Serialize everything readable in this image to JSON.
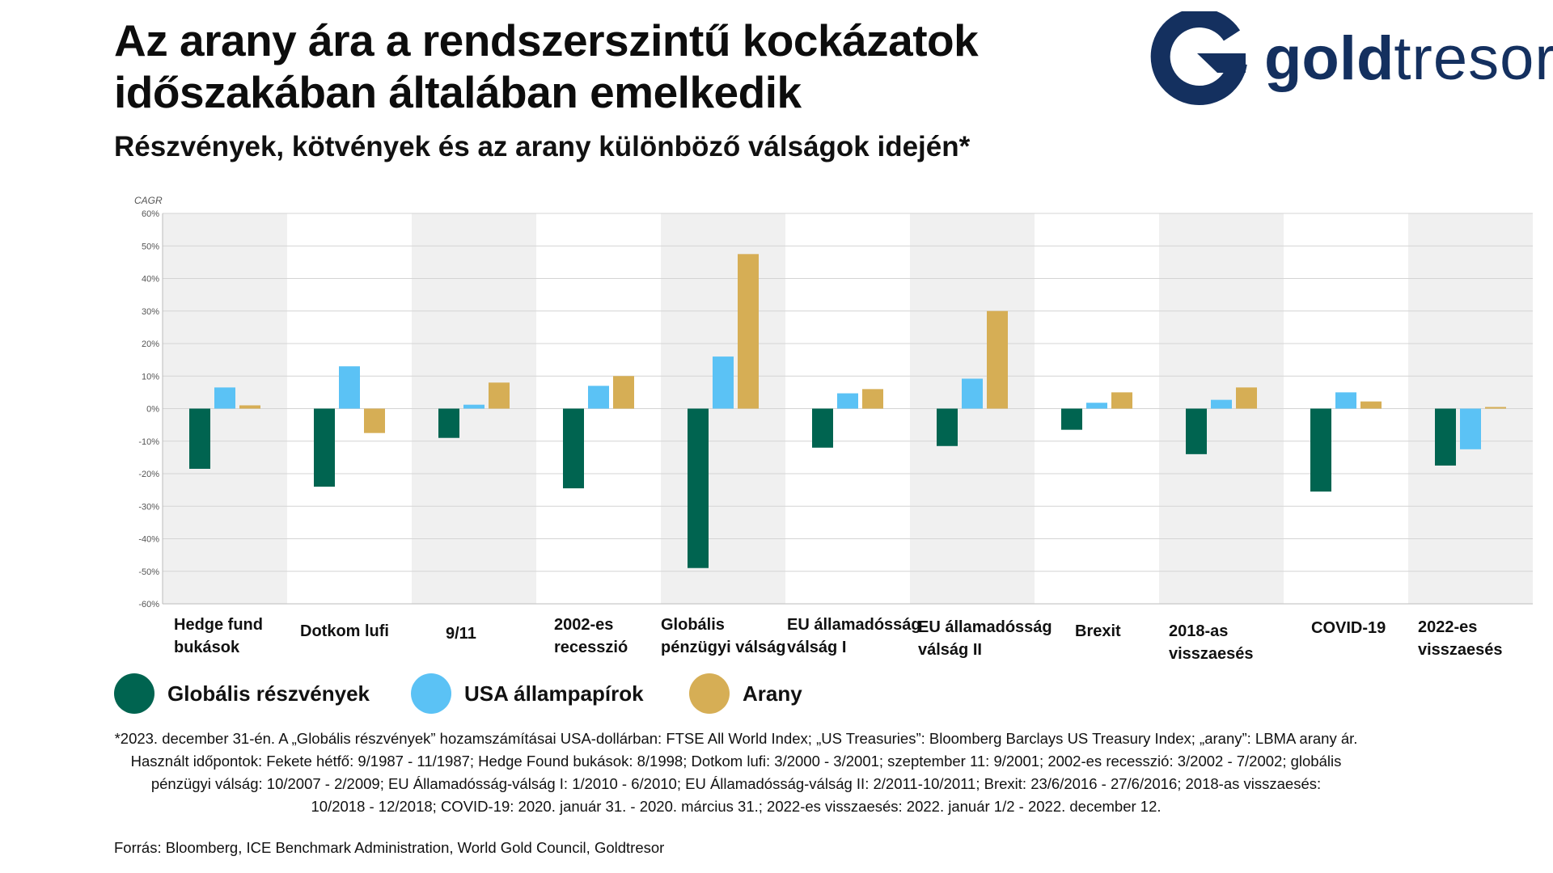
{
  "header": {
    "title_line1": "Az arany ára a rendszerszintű kockázatok",
    "title_line2": "időszakában általában emelkedik",
    "subtitle": "Részvények, kötvények és az arany különböző válságok idején*"
  },
  "logo": {
    "text_bold": "gold",
    "text_regular": "tresor",
    "color": "#14305f"
  },
  "chart_data": {
    "type": "bar",
    "ylabel": "CAGR",
    "ylim": [
      -60,
      60
    ],
    "yticks": [
      60,
      50,
      40,
      30,
      20,
      10,
      0,
      -10,
      -20,
      -30,
      -40,
      -50,
      -60
    ],
    "ytick_labels": [
      "60%",
      "50%",
      "40%",
      "30%",
      "20%",
      "10%",
      "0%",
      "-10%",
      "-20%",
      "-30%",
      "-40%",
      "-50%",
      "-60%"
    ],
    "categories": [
      [
        "Hedge fund",
        "bukások"
      ],
      [
        "Dotkom lufi"
      ],
      [
        "9/11"
      ],
      [
        "2002-es",
        "recesszió"
      ],
      [
        "Globális",
        "pénzügyi válság"
      ],
      [
        "EU államadósság",
        "válság I"
      ],
      [
        "EU államadósság",
        "válság II"
      ],
      [
        "Brexit"
      ],
      [
        "2018-as",
        "visszaesés"
      ],
      [
        "COVID-19"
      ],
      [
        "2022-es",
        "visszaesés"
      ]
    ],
    "series": [
      {
        "name": "Globális részvények",
        "color": "#006450",
        "values": [
          -18.5,
          -24,
          -9,
          -24.5,
          -49,
          -12,
          -11.5,
          -6.5,
          -14,
          -25.5,
          -17.5
        ]
      },
      {
        "name": "USA állampapírok",
        "color": "#5bc2f5",
        "values": [
          6.5,
          13,
          1.2,
          7,
          16,
          4.7,
          9.2,
          1.8,
          2.7,
          5,
          -12.5
        ]
      },
      {
        "name": "Arany",
        "color": "#d6ae55",
        "values": [
          1,
          -7.5,
          8,
          10,
          47.5,
          6,
          30,
          5,
          6.5,
          2.2,
          0.5
        ]
      }
    ],
    "grid": true,
    "band_colors": [
      "#f0f0f0",
      "#ffffff"
    ],
    "legend_position": "bottom"
  },
  "legend": [
    {
      "label": "Globális részvények",
      "color": "#006450"
    },
    {
      "label": "USA állampapírok",
      "color": "#5bc2f5"
    },
    {
      "label": "Arany",
      "color": "#d6ae55"
    }
  ],
  "footnote": {
    "line1": "*2023. december 31-én. A „Globális részvények” hozamszámításai USA-dollárban: FTSE All World Index; „US Treasuries”: Bloomberg Barclays US Treasury Index; „arany”: LBMA arany ár.",
    "line2": "Használt időpontok: Fekete hétfő: 9/1987 - 11/1987; Hedge Found bukások: 8/1998; Dotkom lufi: 3/2000 - 3/2001; szeptember 11: 9/2001; 2002-es recesszió: 3/2002 - 7/2002; globális",
    "line3": "pénzügyi válság: 10/2007 - 2/2009; EU Államadósság-válság I: 1/2010 - 6/2010; EU Államadósság-válság II: 2/2011-10/2011; Brexit: 23/6/2016 - 27/6/2016; 2018-as visszaesés:",
    "line4": "10/2018 - 12/2018; COVID-19: 2020. január 31. - 2020. március 31.; 2022-es visszaesés: 2022. január 1/2 - 2022. december 12."
  },
  "source": "Forrás: Bloomberg, ICE Benchmark Administration, World Gold Council, Goldtresor"
}
